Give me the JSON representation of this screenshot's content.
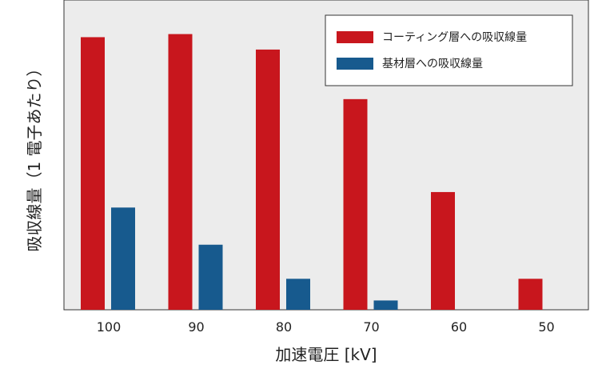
{
  "chart_data": {
    "type": "bar",
    "title": "",
    "xlabel": "加速電圧 [kV]",
    "ylabel": "吸収線量（1 電子あたり）",
    "categories": [
      "100",
      "90",
      "80",
      "70",
      "60",
      "50"
    ],
    "series": [
      {
        "name": "コーティング層への吸収線量",
        "color": "#c8161d",
        "values": [
          0.88,
          0.89,
          0.84,
          0.68,
          0.38,
          0.1
        ]
      },
      {
        "name": "基材層への吸収線量",
        "color": "#175a8e",
        "values": [
          0.33,
          0.21,
          0.1,
          0.03,
          0,
          0
        ]
      }
    ],
    "ylim": [
      0,
      1
    ],
    "grid": false,
    "plot_background": "#ececec",
    "legend_position": "top-right"
  }
}
